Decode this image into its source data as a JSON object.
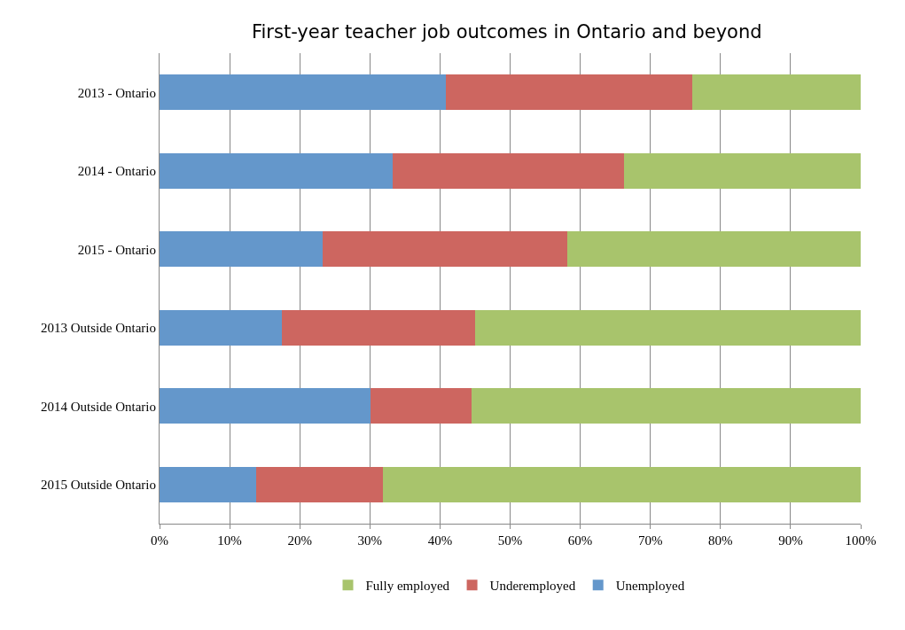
{
  "chart_data": {
    "type": "bar",
    "title": "First-year teacher job outcomes in Ontario and beyond",
    "orientation": "horizontal",
    "stacked": true,
    "categories": [
      "2013 - Ontario",
      "2014 - Ontario",
      "2015 - Ontario",
      "2013 Outside Ontario",
      "2014 Outside Ontario",
      "2015 Outside Ontario"
    ],
    "series": [
      {
        "name": "Unemployed",
        "color": "#6497cb",
        "values": [
          40.8,
          33.3,
          23.3,
          17.5,
          30.1,
          13.8
        ]
      },
      {
        "name": "Underemployed",
        "color": "#cd6660",
        "values": [
          35.2,
          33.0,
          34.9,
          27.5,
          14.4,
          18.0
        ]
      },
      {
        "name": "Fully employed",
        "color": "#a8c46c",
        "values": [
          24.0,
          33.7,
          41.8,
          55.0,
          55.5,
          68.2
        ]
      }
    ],
    "xlim": [
      0,
      100
    ],
    "xticks": [
      {
        "value": 0,
        "label": "0%"
      },
      {
        "value": 10,
        "label": "10%"
      },
      {
        "value": 20,
        "label": "20%"
      },
      {
        "value": 30,
        "label": "30%"
      },
      {
        "value": 40,
        "label": "40%"
      },
      {
        "value": 50,
        "label": "50%"
      },
      {
        "value": 60,
        "label": "60%"
      },
      {
        "value": 70,
        "label": "70%"
      },
      {
        "value": 80,
        "label": "80%"
      },
      {
        "value": 90,
        "label": "90%"
      },
      {
        "value": 100,
        "label": "100%"
      }
    ],
    "grid": "x",
    "legend": "bottom"
  }
}
